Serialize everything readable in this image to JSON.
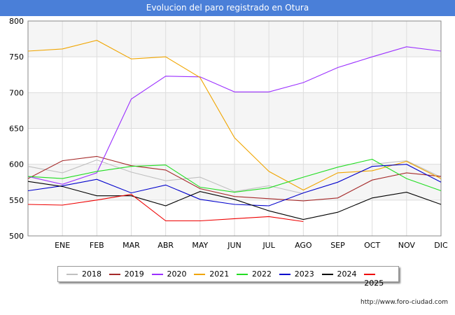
{
  "header": {
    "title": "Evolucion del paro registrado en Otura"
  },
  "footer": {
    "url": "http://www.foro-ciudad.com"
  },
  "chart_data": {
    "type": "line",
    "title": "Evolucion del paro registrado en Otura",
    "categories": [
      "",
      "ENE",
      "FEB",
      "MAR",
      "ABR",
      "MAY",
      "JUN",
      "JUL",
      "AGO",
      "SEP",
      "OCT",
      "NOV",
      "DIC"
    ],
    "ylim": [
      500,
      800
    ],
    "yticks": [
      500,
      550,
      600,
      650,
      700,
      750,
      800
    ],
    "grid": true,
    "legend_position": "bottom",
    "series": [
      {
        "name": "2018",
        "color": "#c0c0c0",
        "values": [
          597,
          588,
          606,
          589,
          577,
          582,
          562,
          570,
          559,
          null,
          600,
          605,
          582
        ]
      },
      {
        "name": "2019",
        "color": "#a52a2a",
        "values": [
          580,
          605,
          611,
          598,
          592,
          566,
          555,
          552,
          549,
          553,
          578,
          588,
          583
        ]
      },
      {
        "name": "2020",
        "color": "#9b30ff",
        "values": [
          583,
          572,
          588,
          691,
          723,
          722,
          701,
          701,
          714,
          735,
          750,
          764,
          758
        ]
      },
      {
        "name": "2021",
        "color": "#f0a500",
        "values": [
          758,
          761,
          773,
          747,
          750,
          721,
          637,
          590,
          564,
          588,
          591,
          604,
          580
        ]
      },
      {
        "name": "2022",
        "color": "#22dd22",
        "values": [
          583,
          580,
          590,
          597,
          599,
          568,
          561,
          567,
          582,
          596,
          607,
          580,
          563
        ]
      },
      {
        "name": "2023",
        "color": "#0000cc",
        "values": [
          563,
          570,
          579,
          560,
          571,
          551,
          544,
          542,
          560,
          575,
          597,
          600,
          575
        ]
      },
      {
        "name": "2024",
        "color": "#000000",
        "values": [
          576,
          569,
          556,
          556,
          542,
          562,
          551,
          535,
          523,
          533,
          553,
          561,
          544
        ]
      },
      {
        "name": "2025",
        "color": "#ee0000",
        "values": [
          544,
          543,
          550,
          558,
          521,
          521,
          524,
          527,
          520,
          null,
          null,
          null,
          null
        ]
      }
    ]
  }
}
